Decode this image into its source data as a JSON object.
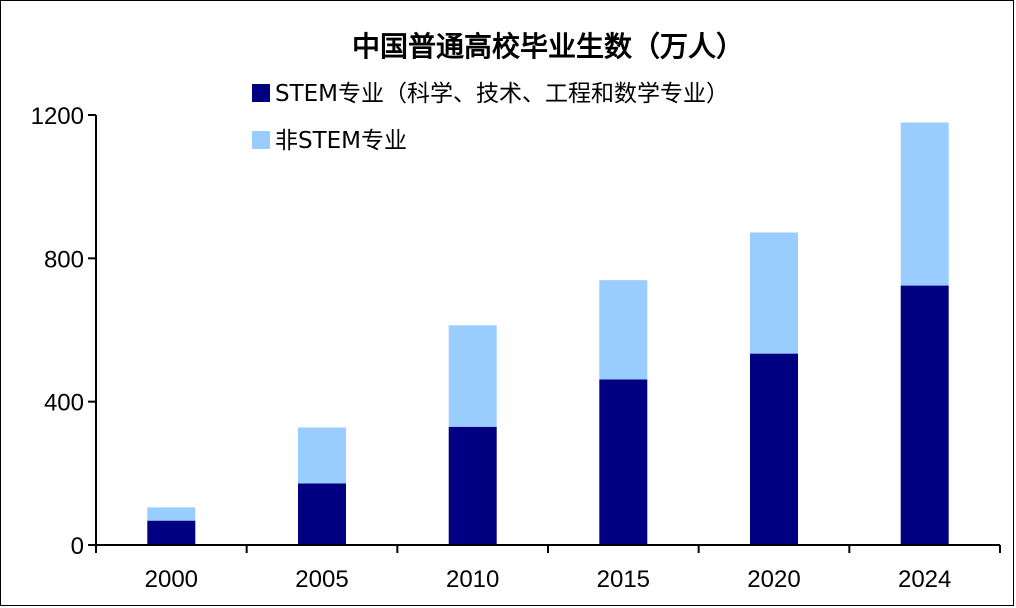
{
  "chart_data": {
    "type": "bar",
    "stacked": true,
    "title": "中国普通高校毕业生数（万人）",
    "categories": [
      "2000",
      "2005",
      "2010",
      "2015",
      "2020",
      "2024"
    ],
    "series": [
      {
        "name": "STEM专业（科学、技术、工程和数学专业）",
        "color": "#000080",
        "values": [
          68,
          172,
          330,
          462,
          534,
          724
        ]
      },
      {
        "name": "非STEM专业",
        "color": "#99ccff",
        "values": [
          37,
          156,
          283,
          277,
          338,
          455
        ]
      }
    ],
    "ylim": [
      0,
      1200
    ],
    "yticks": [
      0,
      400,
      800,
      1200
    ],
    "grid": false,
    "legend_position": "top-left"
  }
}
